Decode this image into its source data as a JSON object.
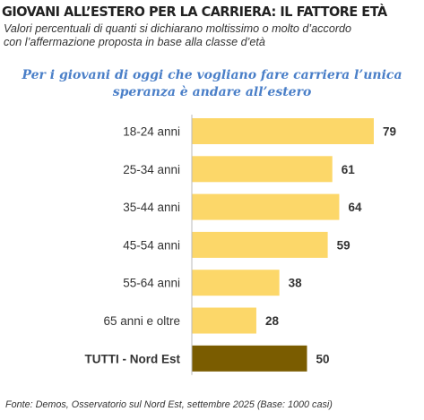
{
  "header": {
    "title": "GIOVANI ALL’ESTERO PER LA CARRIERA: IL FATTORE ETÀ",
    "subtitle_line1": "Valori percentuali di quanti si dichiarano moltissimo o molto d’accordo",
    "subtitle_line2": "con l’affermazione proposta in base alla classe d’età"
  },
  "chart_data": {
    "type": "bar",
    "orientation": "horizontal",
    "title": "Per i giovani di oggi che vogliano fare carriera l’unica speranza è andare all’estero",
    "title_line1": "Per i giovani di oggi che vogliano fare carriera l’unica",
    "title_line2": "speranza è andare all’estero",
    "categories": [
      "18-24 anni",
      "25-34 anni",
      "35-44 anni",
      "45-54 anni",
      "55-64 anni",
      "65 anni e oltre",
      "TUTTI - Nord Est"
    ],
    "values": [
      79,
      61,
      64,
      59,
      38,
      28,
      50
    ],
    "xlim": [
      0,
      79
    ],
    "grid": false,
    "data_labels": true,
    "colors": {
      "bar": "#fcd769",
      "total_bar": "#7a5c00"
    }
  },
  "footer": {
    "source": "Fonte: Demos, Osservatorio sul Nord Est, settembre 2025 (Base: 1000 casi)"
  }
}
